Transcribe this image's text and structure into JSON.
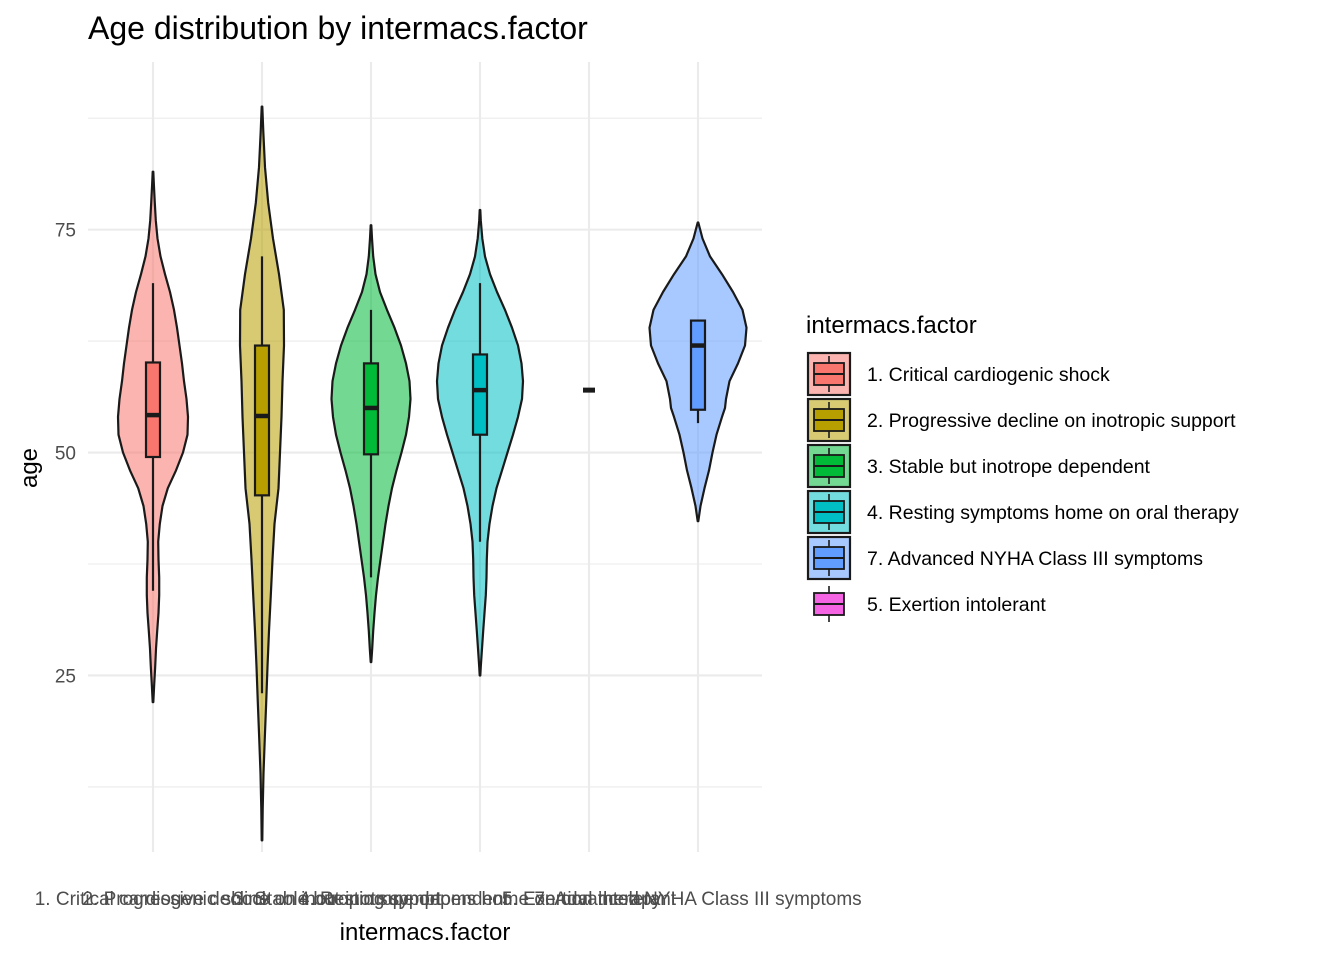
{
  "chart_data": {
    "type": "violin",
    "title": "Age distribution by intermacs.factor",
    "xlabel": "intermacs.factor",
    "ylabel": "age",
    "ylim": [
      5.2,
      93.8
    ],
    "yticks": [
      25,
      50,
      75
    ],
    "grid": true,
    "legend": {
      "title": "intermacs.factor",
      "position": "right",
      "entries": [
        {
          "label": "1. Critical cardiogenic shock",
          "color": "#F8766D"
        },
        {
          "label": "2. Progressive decline on inotropic support",
          "color": "#B79F00"
        },
        {
          "label": "3. Stable but inotrope dependent",
          "color": "#00BA38"
        },
        {
          "label": "4. Resting symptoms home on oral therapy",
          "color": "#00BFC4"
        },
        {
          "label": "7. Advanced NYHA Class III symptoms",
          "color": "#619CFF"
        },
        {
          "label": "5. Exertion intolerant",
          "color": "#F564E3"
        }
      ]
    },
    "categories": [
      "1. Critical cardiogenic shock",
      "2. Progressive decline on inotropic support",
      "3. Stable but inotrope dependent",
      "4. Resting symptoms home on oral therapy",
      "5. Exertion intolerant",
      "7. Advanced NYHA Class III symptoms"
    ],
    "series": [
      {
        "category": "1. Critical cardiogenic shock",
        "color": "#F8766D",
        "box": {
          "min": 34.5,
          "q1": 49.5,
          "median": 54.2,
          "q3": 60.1,
          "max": 69.0
        },
        "violin": {
          "y": [
            22,
            24,
            26,
            28,
            30,
            32,
            34,
            36,
            38,
            40,
            42,
            44,
            46,
            48,
            50,
            52,
            54,
            56,
            58,
            60,
            62,
            64,
            66,
            68,
            70,
            72,
            74,
            76,
            78,
            80,
            81.5
          ],
          "hw": [
            0.3,
            1.2,
            2.2,
            3.0,
            4.2,
            5.5,
            6.2,
            6.2,
            5.5,
            5.2,
            6.8,
            9.5,
            14.8,
            23.0,
            30.0,
            34.5,
            35.0,
            33.5,
            31.0,
            29.0,
            26.5,
            24.0,
            21.0,
            17.0,
            12.0,
            7.5,
            4.5,
            2.8,
            1.8,
            0.9,
            0.3
          ]
        }
      },
      {
        "category": "2. Progressive decline on inotropic support",
        "color": "#B79F00",
        "box": {
          "min": 23.0,
          "q1": 45.2,
          "median": 54.1,
          "q3": 62.0,
          "max": 72.0
        },
        "violin": {
          "y": [
            6.5,
            10,
            14,
            18,
            22,
            26,
            30,
            34,
            38,
            42,
            46,
            50,
            54,
            58,
            62,
            66,
            70,
            74,
            78,
            82,
            86,
            88.8
          ],
          "hw": [
            0.3,
            0.7,
            1.5,
            2.8,
            4.2,
            5.5,
            7.0,
            8.8,
            10.5,
            12.5,
            16.5,
            18.0,
            19.5,
            20.5,
            22.0,
            21.8,
            17.0,
            11.0,
            6.2,
            3.0,
            1.3,
            0.3
          ]
        }
      },
      {
        "category": "3. Stable but inotrope dependent",
        "color": "#00BA38",
        "box": {
          "min": 36.0,
          "q1": 49.8,
          "median": 55.0,
          "q3": 60.0,
          "max": 66.0
        },
        "violin": {
          "y": [
            26.5,
            28,
            30,
            32,
            34,
            36,
            38,
            40,
            42,
            44,
            46,
            48,
            50,
            52,
            54,
            56,
            58,
            60,
            62,
            64,
            66,
            68,
            70,
            72,
            74,
            75.5
          ],
          "hw": [
            0.3,
            1.2,
            2.2,
            3.5,
            5.0,
            7.0,
            9.5,
            12.0,
            14.5,
            17.5,
            21.0,
            25.5,
            30.5,
            35.0,
            38.0,
            39.5,
            38.5,
            35.0,
            30.0,
            23.5,
            16.0,
            9.0,
            4.5,
            2.2,
            1.0,
            0.3
          ]
        }
      },
      {
        "category": "4. Resting symptoms home on oral therapy",
        "color": "#00BFC4",
        "box": {
          "min": 40.0,
          "q1": 52.0,
          "median": 57.0,
          "q3": 61.0,
          "max": 69.0
        },
        "violin": {
          "y": [
            25,
            26,
            28,
            30,
            32,
            34,
            36,
            38,
            40,
            42,
            44,
            46,
            48,
            50,
            52,
            54,
            56,
            58,
            60,
            62,
            64,
            66,
            68,
            70,
            72,
            74,
            76,
            77.2
          ],
          "hw": [
            0.3,
            0.8,
            2.0,
            3.2,
            4.5,
            5.8,
            6.5,
            6.8,
            7.5,
            9.5,
            12.5,
            16.5,
            22.0,
            27.5,
            33.0,
            38.0,
            42.0,
            43.0,
            41.5,
            38.0,
            32.0,
            25.0,
            17.0,
            10.0,
            5.0,
            2.3,
            0.8,
            0.3
          ]
        }
      },
      {
        "category": "5. Exertion intolerant",
        "color": "#F564E3",
        "box": {
          "min": 57.0,
          "q1": 57.0,
          "median": 57.0,
          "q3": 57.0,
          "max": 57.0
        },
        "violin": {
          "y": [],
          "hw": []
        }
      },
      {
        "category": "7. Advanced NYHA Class III symptoms",
        "color": "#619CFF",
        "box": {
          "min": 53.3,
          "q1": 54.8,
          "median": 62.0,
          "q3": 64.8,
          "max": 64.8
        },
        "violin": {
          "y": [
            42.3,
            44,
            46,
            48,
            50,
            52,
            54,
            55,
            56,
            58,
            60,
            62,
            64,
            66,
            68,
            70,
            72,
            74,
            75.8
          ],
          "hw": [
            0.3,
            2.5,
            6.5,
            11.0,
            14.5,
            18.5,
            24.0,
            27.0,
            28.0,
            31.5,
            40.0,
            47.0,
            48.5,
            44.5,
            35.0,
            24.0,
            12.0,
            4.5,
            0.3
          ]
        }
      }
    ]
  }
}
